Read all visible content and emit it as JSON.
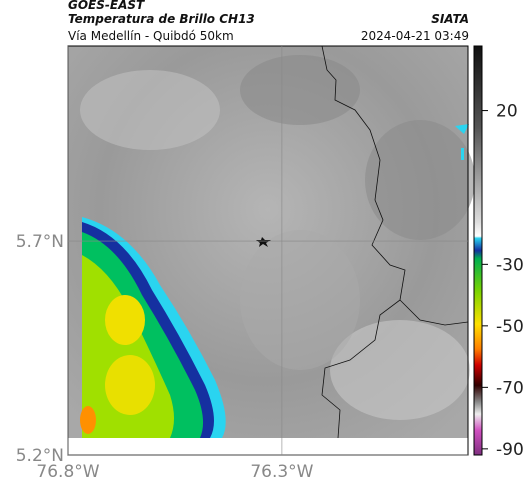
{
  "header": {
    "source": "GOES-EAST",
    "title": "Temperatura de Brillo CH13",
    "subtitle": "Vía Medellín - Quibdó 50km",
    "agency": "SIATA",
    "timestamp": "2024-04-21 03:49"
  },
  "map": {
    "xlim": [
      -76.8,
      -75.865
    ],
    "ylim": [
      5.2,
      6.156
    ],
    "xticks": [
      {
        "value": -76.8,
        "label": "76.8°W"
      },
      {
        "value": -76.3,
        "label": "76.3°W"
      }
    ],
    "yticks": [
      {
        "value": 5.2,
        "label": "5.2°N"
      },
      {
        "value": 5.7,
        "label": "5.7°N"
      }
    ]
  },
  "colorbar": {
    "lim": [
      -92,
      41
    ],
    "ticks": [
      20,
      -30,
      -50,
      -70,
      -90
    ]
  }
}
